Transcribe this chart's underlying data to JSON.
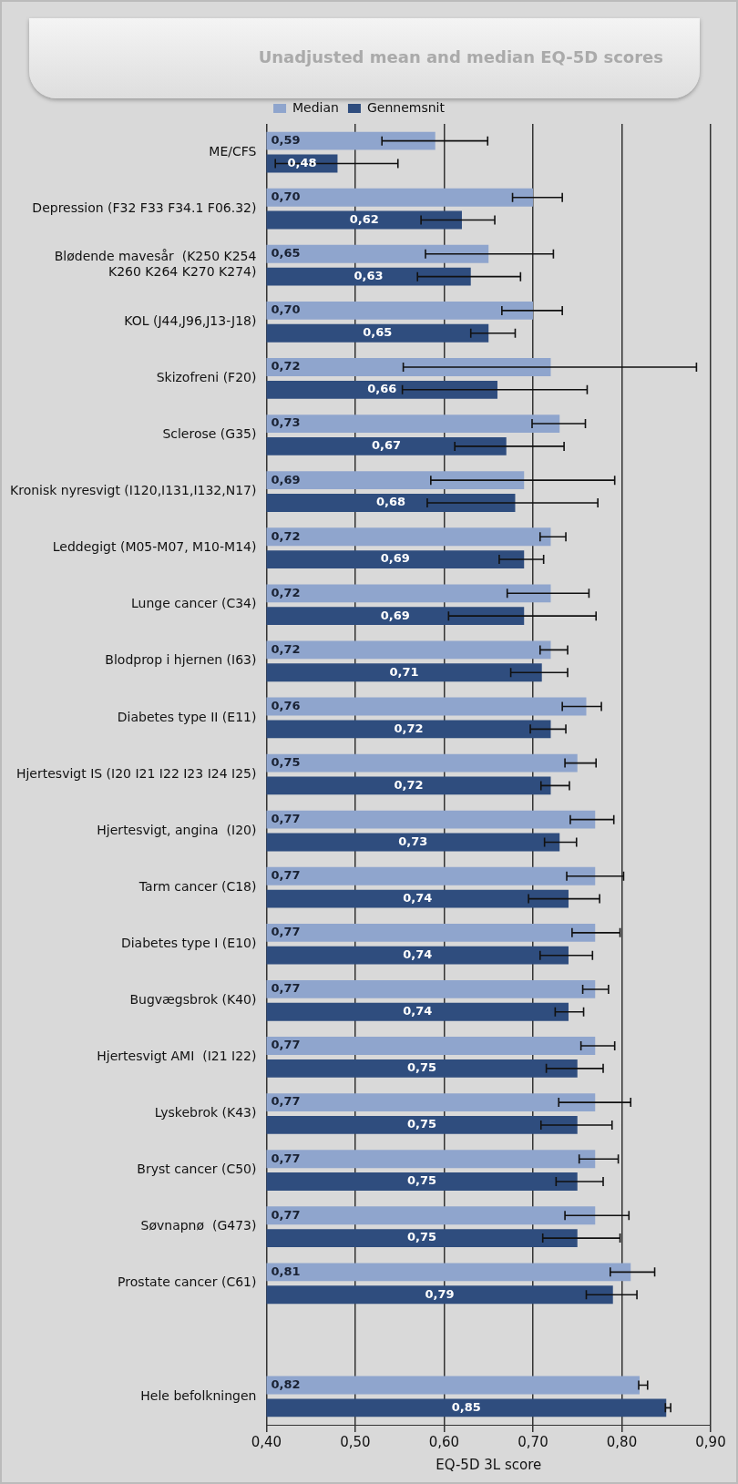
{
  "chart_data": {
    "type": "bar",
    "orientation": "horizontal",
    "title": "Unadjusted mean and median EQ-5D scores",
    "xlabel": "EQ-5D 3L score",
    "categories": [
      "ME/CFS",
      "Depression (F32 F33 F34.1 F06.32)",
      "Blødende mavesår  (K250 K254 K260 K264 K270 K274)",
      "KOL (J44,J96,J13-J18)",
      "Skizofreni (F20)",
      "Sclerose (G35)",
      "Kronisk nyresvigt (I120,I131,I132,N17)",
      "Leddegigt (M05-M07, M10-M14)",
      "Lunge cancer (C34)",
      "Blodprop i hjernen (I63)",
      "Diabetes type II (E11)",
      "Hjertesvigt IS (I20 I21 I22 I23 I24 I25)",
      "Hjertesvigt, angina  (I20)",
      "Tarm cancer (C18)",
      "Diabetes type I (E10)",
      "Bugvægsbrok (K40)",
      "Hjertesvigt AMI  (I21 I22)",
      "Lyskebrok (K43)",
      "Bryst cancer (C50)",
      "Søvnapnø  (G473)",
      "Prostate cancer (C61)",
      null,
      "Hele befolkningen"
    ],
    "series": [
      {
        "name": "Median",
        "color": "#8fa5cd",
        "values": [
          0.59,
          0.7,
          0.65,
          0.7,
          0.72,
          0.73,
          0.69,
          0.72,
          0.72,
          0.72,
          0.76,
          0.75,
          0.77,
          0.77,
          0.77,
          0.77,
          0.77,
          0.77,
          0.77,
          0.77,
          0.81,
          null,
          0.82
        ],
        "value_labels": [
          "0,59",
          "0,70",
          "0,65",
          "0,70",
          "0,72",
          "0,73",
          "0,69",
          "0,72",
          "0,72",
          "0,72",
          "0,76",
          "0,75",
          "0,77",
          "0,77",
          "0,77",
          "0,77",
          "0,77",
          "0,77",
          "0,77",
          "0,77",
          "0,81",
          null,
          "0,82"
        ],
        "errors": [
          [
            0.53,
            0.649
          ],
          [
            0.677,
            0.733
          ],
          [
            0.579,
            0.723
          ],
          [
            0.665,
            0.733
          ],
          [
            0.554,
            0.884
          ],
          [
            0.699,
            0.759
          ],
          [
            0.585,
            0.792
          ],
          [
            0.708,
            0.737
          ],
          [
            0.671,
            0.763
          ],
          [
            0.708,
            0.739
          ],
          [
            0.733,
            0.777
          ],
          [
            0.736,
            0.771
          ],
          [
            0.742,
            0.791
          ],
          [
            0.738,
            0.802
          ],
          [
            0.744,
            0.798
          ],
          [
            0.756,
            0.785
          ],
          [
            0.754,
            0.792
          ],
          [
            0.729,
            0.81
          ],
          [
            0.752,
            0.796
          ],
          [
            0.736,
            0.808
          ],
          [
            0.787,
            0.837
          ],
          null,
          [
            0.819,
            0.829
          ]
        ]
      },
      {
        "name": "Gennemsnit",
        "color": "#2f4d7e",
        "values": [
          0.48,
          0.62,
          0.63,
          0.65,
          0.66,
          0.67,
          0.68,
          0.69,
          0.69,
          0.71,
          0.72,
          0.72,
          0.73,
          0.74,
          0.74,
          0.74,
          0.75,
          0.75,
          0.75,
          0.75,
          0.79,
          null,
          0.85
        ],
        "value_labels": [
          "0,48",
          "0,62",
          "0,63",
          "0,65",
          "0,66",
          "0,67",
          "0,68",
          "0,69",
          "0,69",
          "0,71",
          "0,72",
          "0,72",
          "0,73",
          "0,74",
          "0,74",
          "0,74",
          "0,75",
          "0,75",
          "0,75",
          "0,75",
          "0,79",
          null,
          "0,85"
        ],
        "errors": [
          [
            0.41,
            0.548
          ],
          [
            0.574,
            0.657
          ],
          [
            0.57,
            0.686
          ],
          [
            0.63,
            0.68
          ],
          [
            0.553,
            0.761
          ],
          [
            0.612,
            0.735
          ],
          [
            0.581,
            0.773
          ],
          [
            0.662,
            0.712
          ],
          [
            0.605,
            0.771
          ],
          [
            0.675,
            0.739
          ],
          [
            0.697,
            0.737
          ],
          [
            0.709,
            0.741
          ],
          [
            0.713,
            0.749
          ],
          [
            0.695,
            0.775
          ],
          [
            0.708,
            0.767
          ],
          [
            0.725,
            0.757
          ],
          [
            0.715,
            0.779
          ],
          [
            0.709,
            0.789
          ],
          [
            0.726,
            0.779
          ],
          [
            0.711,
            0.798
          ],
          [
            0.76,
            0.817
          ],
          null,
          [
            0.849,
            0.855
          ]
        ]
      }
    ],
    "xlim": [
      0.4,
      0.9
    ],
    "xticks": [
      {
        "value": 0.4,
        "label": "0,40"
      },
      {
        "value": 0.5,
        "label": "0,50"
      },
      {
        "value": 0.6,
        "label": "0,60"
      },
      {
        "value": 0.7,
        "label": "0,70"
      },
      {
        "value": 0.8,
        "label": "0,80"
      },
      {
        "value": 0.9,
        "label": "0,90"
      }
    ],
    "grid": "x",
    "legend": "top"
  }
}
